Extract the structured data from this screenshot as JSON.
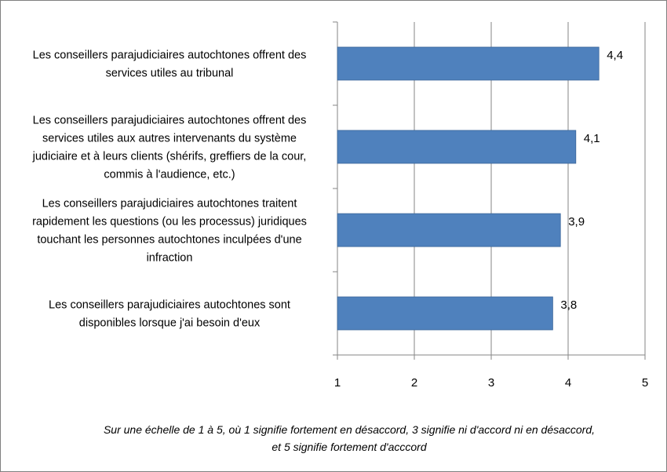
{
  "chart_data": {
    "type": "bar",
    "orientation": "horizontal",
    "categories": [
      [
        "Les conseillers parajudiciaires autochtones offrent des",
        "services utiles au tribunal"
      ],
      [
        "Les conseillers parajudiciaires autochtones offrent des",
        "services utiles aux autres intervenants du système",
        "judiciaire et à leurs clients (shérifs, greffiers de la cour,",
        "commis à l'audience, etc.)"
      ],
      [
        "Les conseillers parajudiciaires autochtones traitent",
        "rapidement les questions (ou les processus) juridiques",
        "touchant les personnes autochtones inculpées d'une",
        "infraction"
      ],
      [
        "Les conseillers parajudiciaires autochtones sont",
        "disponibles lorsque j'ai besoin d'eux"
      ]
    ],
    "values": [
      4.4,
      4.1,
      3.9,
      3.8
    ],
    "value_labels": [
      "4,4",
      "4,1",
      "3,9",
      "3,8"
    ],
    "xlim": [
      1,
      5
    ],
    "x_ticks": [
      "1",
      "2",
      "3",
      "4",
      "5"
    ],
    "grid": "vertical",
    "legend": "none",
    "bar_color": "#4F81BD",
    "grid_color": "#868686",
    "footnote": [
      "Sur une échelle de 1 à 5, où 1 signifie fortement en désaccord, 3 signifie ni d'accord ni en désaccord,",
      "et 5 signifie fortement d'acccord"
    ]
  }
}
